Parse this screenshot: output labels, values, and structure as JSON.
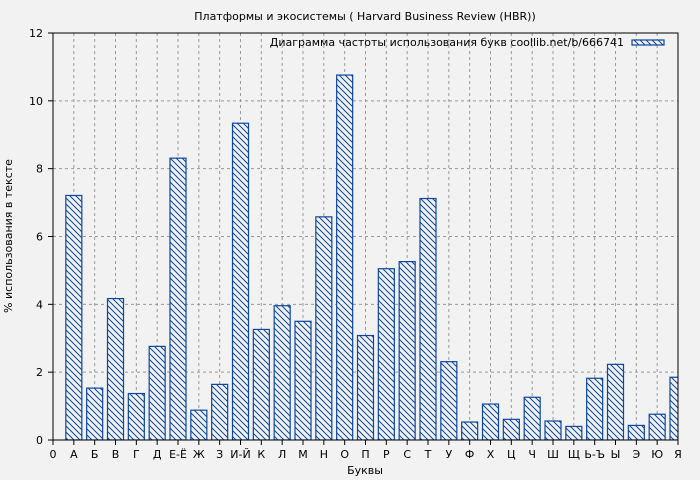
{
  "chart_data": {
    "type": "bar",
    "title": "Платформы и экосистемы ( Harvard Business Review (HBR))",
    "xlabel": "Буквы",
    "ylabel": "% использования в тексте",
    "ylim": [
      0,
      12
    ],
    "yticks": [
      0,
      2,
      4,
      6,
      8,
      10,
      12
    ],
    "xtick_labels": [
      "0",
      "А",
      "Б",
      "В",
      "Г",
      "Д",
      "Е-Ё",
      "Ж",
      "З",
      "И-Й",
      "К",
      "Л",
      "М",
      "Н",
      "О",
      "П",
      "Р",
      "С",
      "Т",
      "У",
      "Ф",
      "Х",
      "Ц",
      "Ч",
      "Ш",
      "Щ",
      "Ь-Ъ",
      "Ы",
      "Э",
      "Ю",
      "Я"
    ],
    "grid": true,
    "legend_position": "upper right",
    "categories": [
      "А",
      "Б",
      "В",
      "Г",
      "Д",
      "Е-Ё",
      "Ж",
      "З",
      "И-Й",
      "К",
      "Л",
      "М",
      "Н",
      "О",
      "П",
      "Р",
      "С",
      "Т",
      "У",
      "Ф",
      "Х",
      "Ц",
      "Ч",
      "Ш",
      "Щ",
      "Ь-Ъ",
      "Ы",
      "Э",
      "Ю",
      "Я"
    ],
    "series": [
      {
        "name": "Диаграмма частоты использования букв coollib.net/b/666741",
        "color": "#0b47a1",
        "values": [
          7.21,
          1.53,
          4.17,
          1.37,
          2.76,
          8.31,
          0.88,
          1.64,
          9.34,
          3.26,
          3.96,
          3.5,
          6.58,
          10.76,
          3.08,
          5.05,
          5.26,
          7.12,
          2.31,
          0.53,
          1.06,
          0.61,
          1.26,
          0.56,
          0.4,
          1.82,
          2.23,
          0.43,
          0.76,
          1.85
        ]
      }
    ]
  },
  "colors": {
    "background": "#f2f2f2",
    "bar_edge": "#0b47a1",
    "grid": "#999999"
  }
}
